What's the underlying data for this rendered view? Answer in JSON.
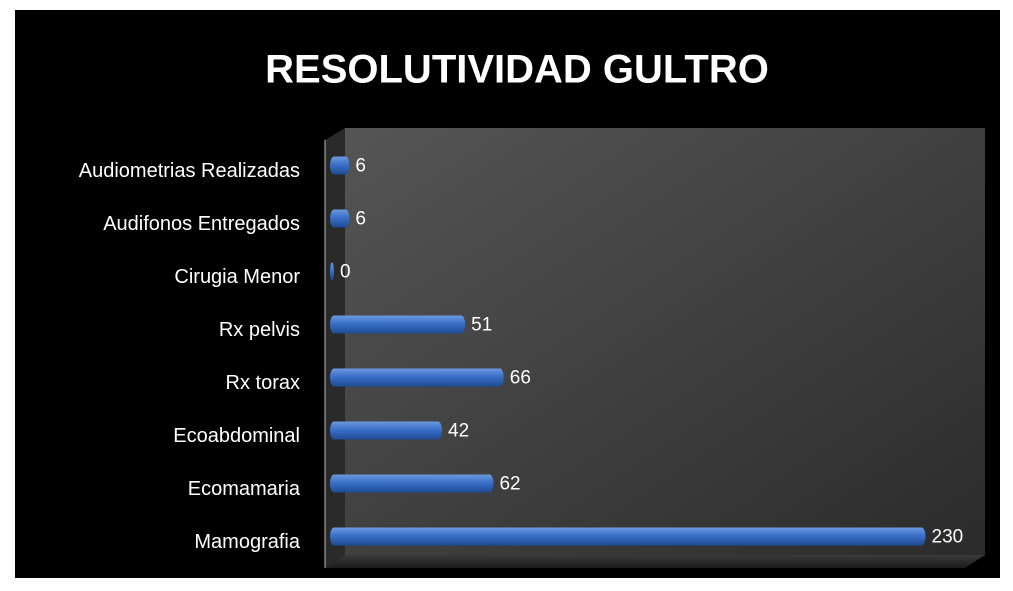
{
  "chart_data": {
    "type": "hbar",
    "title": "RESOLUTIVIDAD GULTRO",
    "categories": [
      "Audiometrias Realizadas",
      "Audifonos Entregados",
      "Cirugia Menor",
      "Rx pelvis",
      "Rx torax",
      "Ecoabdominal",
      "Ecomamaria",
      "Mamografia"
    ],
    "values": [
      6,
      6,
      0,
      51,
      66,
      42,
      62,
      230
    ],
    "color": "#3a70c8",
    "xlim": [
      0,
      250
    ]
  }
}
